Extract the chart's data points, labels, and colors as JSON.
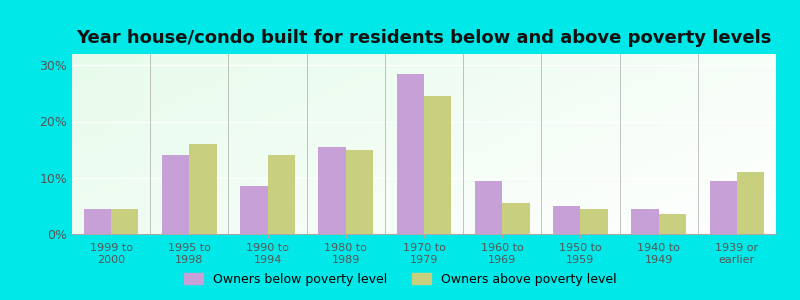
{
  "title": "Year house/condo built for residents below and above poverty levels",
  "categories": [
    "1999 to\n2000",
    "1995 to\n1998",
    "1990 to\n1994",
    "1980 to\n1989",
    "1970 to\n1979",
    "1960 to\n1969",
    "1950 to\n1959",
    "1940 to\n1949",
    "1939 or\nearlier"
  ],
  "below_poverty": [
    4.5,
    14.0,
    8.5,
    15.5,
    28.5,
    9.5,
    5.0,
    4.5,
    9.5
  ],
  "above_poverty": [
    4.5,
    16.0,
    14.0,
    15.0,
    24.5,
    5.5,
    4.5,
    3.5,
    11.0
  ],
  "below_color": "#c8a0d8",
  "above_color": "#c8d080",
  "ylim": [
    0,
    32
  ],
  "yticks": [
    0,
    10,
    20,
    30
  ],
  "ytick_labels": [
    "0%",
    "10%",
    "20%",
    "30%"
  ],
  "outer_background": "#00e8e8",
  "title_fontsize": 13,
  "legend_below_label": "Owners below poverty level",
  "legend_above_label": "Owners above poverty level",
  "bar_width": 0.35
}
